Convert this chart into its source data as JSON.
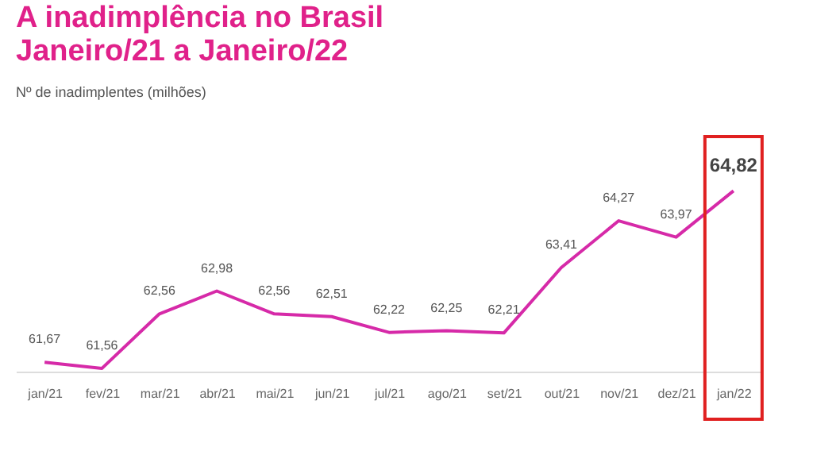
{
  "chart_data": {
    "type": "line",
    "title": "A inadimplência no Brasil\n      Janeiro/21 a Janeiro/22",
    "subtitle": "Nº de inadimplentes (milhões)",
    "categories": [
      "jan/21",
      "fev/21",
      "mar/21",
      "abr/21",
      "mai/21",
      "jun/21",
      "jul/21",
      "ago/21",
      "set/21",
      "out/21",
      "nov/21",
      "dez/21",
      "jan/22"
    ],
    "series": [
      {
        "color": "#d62aa8",
        "values": [
          61.67,
          61.56,
          62.56,
          62.98,
          62.56,
          62.51,
          62.22,
          62.25,
          62.21,
          63.41,
          64.27,
          63.97,
          64.82
        ],
        "value_labels": [
          "61,67",
          "61,56",
          "62,56",
          "62,98",
          "62,56",
          "62,51",
          "62,22",
          "62,25",
          "62,21",
          "63,41",
          "64,27",
          "63,97",
          "64,82"
        ]
      }
    ],
    "grid": false,
    "marker": "none",
    "line_style": "solid"
  }
}
